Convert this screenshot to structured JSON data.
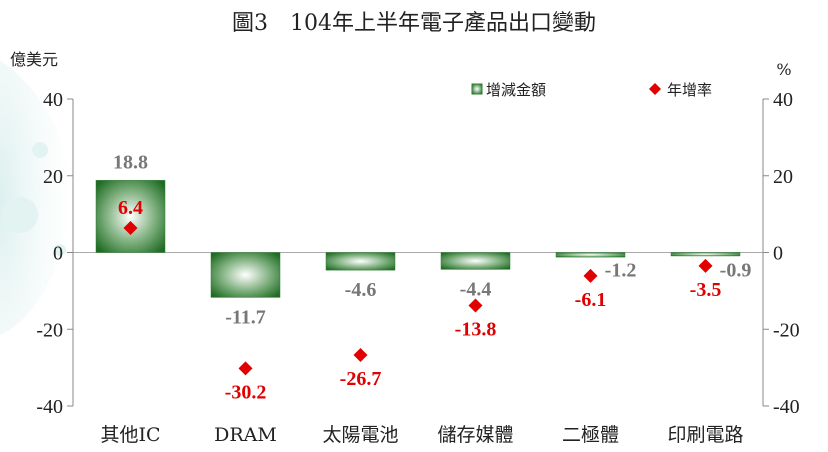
{
  "chart_data": {
    "type": "bar",
    "title": "圖3　104年上半年電子產品出口變動",
    "y_left_unit": "億美元",
    "y_right_unit": "%",
    "categories": [
      "其他IC",
      "DRAM",
      "太陽電池",
      "儲存媒體",
      "二極體",
      "印刷電路"
    ],
    "series": [
      {
        "name": "增減金額",
        "type": "bar",
        "axis": "left",
        "values": [
          18.8,
          -11.7,
          -4.6,
          -4.4,
          -1.2,
          -0.9
        ],
        "color": "#2e7d32"
      },
      {
        "name": "年增率",
        "type": "scatter",
        "axis": "right",
        "values": [
          6.4,
          -30.2,
          -26.7,
          -13.8,
          -6.1,
          -3.5
        ],
        "color": "#e00000"
      }
    ],
    "ylim": [
      -40,
      40
    ],
    "y2lim": [
      -40,
      40
    ],
    "yticks": [
      40,
      20,
      0,
      -20,
      -40
    ],
    "legend_position": "top-right",
    "grid": false
  }
}
